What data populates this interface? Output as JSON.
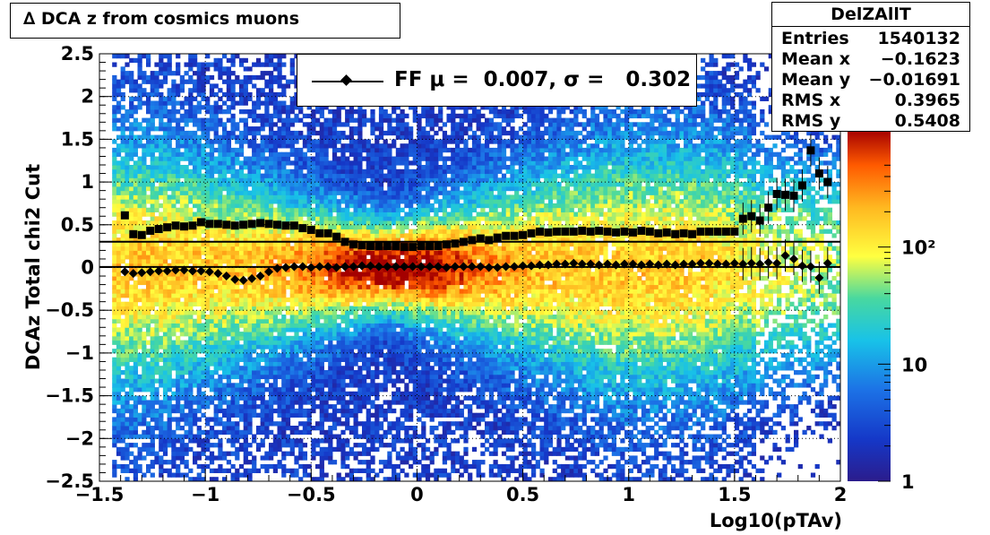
{
  "title": "∆ DCA z from cosmics muons",
  "stats": {
    "name": "DelZAllT",
    "rows": [
      {
        "label": "Entries",
        "value": "1540132"
      },
      {
        "label": "Mean x",
        "value": "−0.1623"
      },
      {
        "label": "Mean y",
        "value": "−0.01691"
      },
      {
        "label": "RMS x",
        "value": "0.3965"
      },
      {
        "label": "RMS y",
        "value": "0.5408"
      }
    ]
  },
  "legend": {
    "text": "FF μ =  0.007, σ =   0.302"
  },
  "chart_data": {
    "type": "heatmap",
    "xlabel": "Log10(pTAv)",
    "ylabel": "DCAz  Total chi2 Cut",
    "xlim": [
      -1.5,
      2
    ],
    "ylim": [
      -2.5,
      2.5
    ],
    "x_ticks": [
      "−1.5",
      "−1",
      "−0.5",
      "0",
      "0.5",
      "1",
      "1.5",
      "2"
    ],
    "y_ticks": [
      "−2.5",
      "−2",
      "−1.5",
      "−1",
      "−0.5",
      "0",
      "0.5",
      "1",
      "1.5",
      "2",
      "2.5"
    ],
    "z_scale": "log",
    "z_range": [
      1,
      1000
    ],
    "z_ticks": [
      "1",
      "10",
      "10²"
    ],
    "grid": true,
    "colors": {
      "low": "#2b1c8c",
      "mid": "#ffff40",
      "high": "#a40000"
    },
    "mean_line": 0.007,
    "sigma_line": 0.302,
    "series": [
      {
        "marker": "diamond",
        "x": [
          -1.38,
          -1.34,
          -1.3,
          -1.26,
          -1.22,
          -1.18,
          -1.14,
          -1.1,
          -1.06,
          -1.02,
          -0.98,
          -0.94,
          -0.9,
          -0.86,
          -0.82,
          -0.78,
          -0.74,
          -0.7,
          -0.66,
          -0.62,
          -0.58,
          -0.54,
          -0.5,
          -0.46,
          -0.42,
          -0.38,
          -0.34,
          -0.3,
          -0.26,
          -0.22,
          -0.18,
          -0.14,
          -0.1,
          -0.06,
          -0.02,
          0.02,
          0.06,
          0.1,
          0.14,
          0.18,
          0.22,
          0.26,
          0.3,
          0.34,
          0.38,
          0.42,
          0.46,
          0.5,
          0.54,
          0.58,
          0.62,
          0.66,
          0.7,
          0.74,
          0.78,
          0.82,
          0.86,
          0.9,
          0.94,
          0.98,
          1.02,
          1.06,
          1.1,
          1.14,
          1.18,
          1.22,
          1.26,
          1.3,
          1.34,
          1.38,
          1.42,
          1.46,
          1.5,
          1.54,
          1.58,
          1.62,
          1.66,
          1.7,
          1.74,
          1.78,
          1.82,
          1.86,
          1.9,
          1.94
        ],
        "y": [
          -0.05,
          -0.07,
          -0.06,
          -0.05,
          -0.04,
          -0.04,
          -0.03,
          -0.03,
          -0.04,
          -0.04,
          -0.05,
          -0.07,
          -0.1,
          -0.14,
          -0.15,
          -0.13,
          -0.1,
          -0.05,
          -0.01,
          0.0,
          0.01,
          0.01,
          0.0,
          0.01,
          0.01,
          0.0,
          0.01,
          0.01,
          0.02,
          0.02,
          0.01,
          0.01,
          0.01,
          0.01,
          0.01,
          0.01,
          0.01,
          0.01,
          0.0,
          0.01,
          0.01,
          0.01,
          0.01,
          0.0,
          0.0,
          0.01,
          0.01,
          0.02,
          0.02,
          0.03,
          0.03,
          0.04,
          0.04,
          0.05,
          0.04,
          0.04,
          0.03,
          0.04,
          0.03,
          0.04,
          0.04,
          0.03,
          0.04,
          0.03,
          0.04,
          0.03,
          0.04,
          0.04,
          0.05,
          0.05,
          0.04,
          0.04,
          0.05,
          0.04,
          0.05,
          0.04,
          0.06,
          0.05,
          0.14,
          0.1,
          0.02,
          0.01,
          -0.12,
          0.05
        ]
      },
      {
        "marker": "square",
        "x": [
          -1.38,
          -1.34,
          -1.3,
          -1.26,
          -1.22,
          -1.18,
          -1.14,
          -1.1,
          -1.06,
          -1.02,
          -0.98,
          -0.94,
          -0.9,
          -0.86,
          -0.82,
          -0.78,
          -0.74,
          -0.7,
          -0.66,
          -0.62,
          -0.58,
          -0.54,
          -0.5,
          -0.46,
          -0.42,
          -0.38,
          -0.34,
          -0.3,
          -0.26,
          -0.22,
          -0.18,
          -0.14,
          -0.1,
          -0.06,
          -0.02,
          0.02,
          0.06,
          0.1,
          0.14,
          0.18,
          0.22,
          0.26,
          0.3,
          0.34,
          0.38,
          0.42,
          0.46,
          0.5,
          0.54,
          0.58,
          0.62,
          0.66,
          0.7,
          0.74,
          0.78,
          0.82,
          0.86,
          0.9,
          0.94,
          0.98,
          1.02,
          1.06,
          1.1,
          1.14,
          1.18,
          1.22,
          1.26,
          1.3,
          1.34,
          1.38,
          1.42,
          1.46,
          1.5,
          1.54,
          1.58,
          1.62,
          1.66,
          1.7,
          1.74,
          1.78,
          1.82,
          1.86,
          1.9,
          1.94
        ],
        "y": [
          0.61,
          0.39,
          0.38,
          0.43,
          0.45,
          0.47,
          0.49,
          0.48,
          0.49,
          0.53,
          0.51,
          0.51,
          0.5,
          0.49,
          0.5,
          0.51,
          0.52,
          0.51,
          0.5,
          0.49,
          0.49,
          0.46,
          0.44,
          0.4,
          0.4,
          0.36,
          0.3,
          0.27,
          0.26,
          0.25,
          0.25,
          0.25,
          0.25,
          0.24,
          0.24,
          0.25,
          0.25,
          0.25,
          0.27,
          0.28,
          0.3,
          0.32,
          0.34,
          0.32,
          0.35,
          0.37,
          0.37,
          0.38,
          0.4,
          0.42,
          0.41,
          0.42,
          0.42,
          0.42,
          0.43,
          0.42,
          0.43,
          0.42,
          0.41,
          0.42,
          0.41,
          0.43,
          0.42,
          0.4,
          0.41,
          0.39,
          0.4,
          0.39,
          0.42,
          0.42,
          0.42,
          0.42,
          0.42,
          0.57,
          0.6,
          0.55,
          0.7,
          0.86,
          0.85,
          0.84,
          0.96,
          1.37,
          1.1,
          1.0
        ]
      }
    ]
  }
}
